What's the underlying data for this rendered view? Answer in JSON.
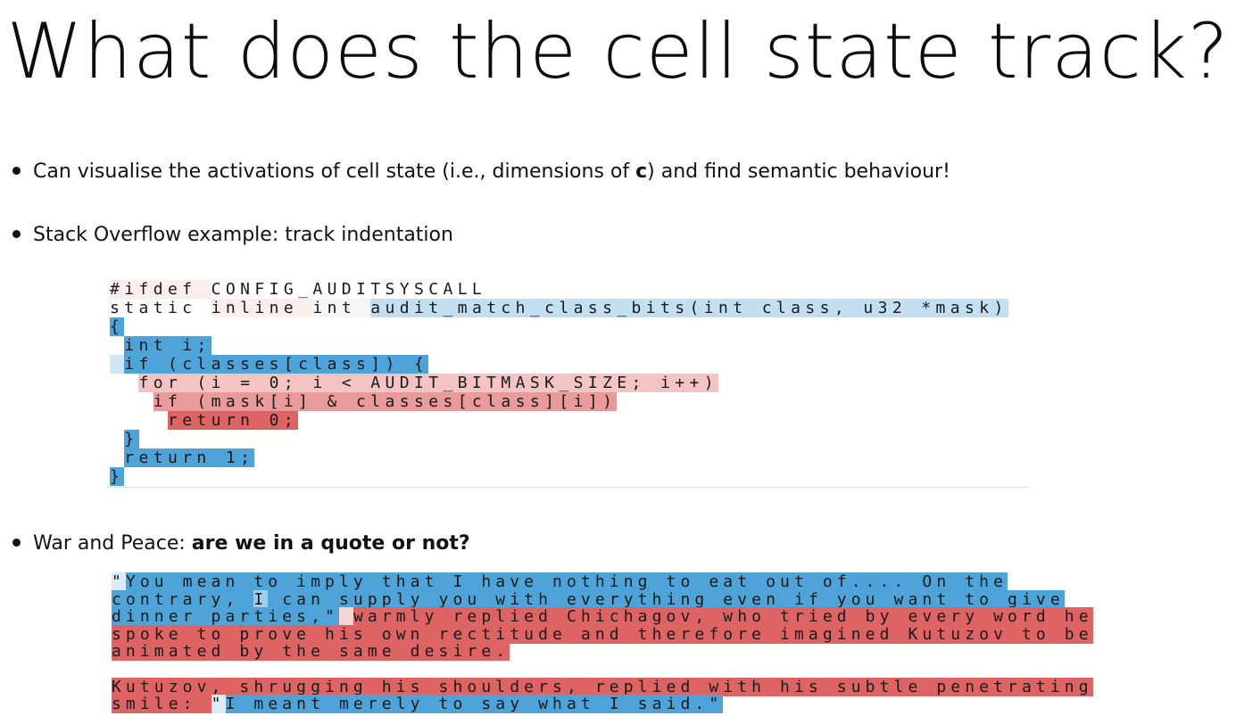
{
  "slide": {
    "title": "What does the cell state track?",
    "bullet1": {
      "pre": "Can visualise the activations of cell state (i.e., dimensions of ",
      "bold": "c",
      "post": ") and find semantic behaviour!"
    },
    "bullet2": {
      "text": "Stack Overflow example: track indentation"
    },
    "bullet3": {
      "pre": "War and Peace: ",
      "bold": "are we in a quote or not?"
    }
  },
  "colors": {
    "strong_blue": "#4ea3d8",
    "light_blue": "#bddff0",
    "faint_blue": "#e4f1f8",
    "strong_red": "#de6464",
    "mid_red": "#eda3a3",
    "light_red": "#f7d4d4",
    "faint_red": "#fce9e9"
  },
  "code_lines": [
    [
      {
        "t": "#ifdef ",
        "c": "#fdeeee"
      },
      {
        "t": "CONFIG_AUDITSYSCALL",
        "c": "#ffffff"
      }
    ],
    [
      {
        "t": "static ",
        "c": "#ffffff"
      },
      {
        "t": "inline ",
        "c": "#fdeeee"
      },
      {
        "t": "int ",
        "c": "#f6f6f6"
      },
      {
        "t": "audit_match_class_bits(int class, u32 *mask)",
        "c": "#c2e0f1"
      }
    ],
    [
      {
        "t": "{",
        "c": "#4ea3d8"
      }
    ],
    [
      {
        "t": " ",
        "c": "#ffffff"
      },
      {
        "t": "int i;",
        "c": "#4ea3d8"
      }
    ],
    [
      {
        "t": " ",
        "c": "#cfe6f4"
      },
      {
        "t": "if (classes[class]) {",
        "c": "#4ea3d8"
      }
    ],
    [
      {
        "t": "  ",
        "c": "#ffffff"
      },
      {
        "t": "for (i = 0; i < AUDIT_BITMASK_SIZE; i++)",
        "c": "#f4c3c3"
      }
    ],
    [
      {
        "t": "   ",
        "c": "#ffffff"
      },
      {
        "t": "if (mask[i] & classes[class][i])",
        "c": "#e99a9a"
      }
    ],
    [
      {
        "t": "    ",
        "c": "#ffffff"
      },
      {
        "t": "return 0;",
        "c": "#de6464"
      }
    ],
    [
      {
        "t": " ",
        "c": "#ffffff"
      },
      {
        "t": "}",
        "c": "#4ea3d8"
      }
    ],
    [
      {
        "t": " ",
        "c": "#ffffff"
      },
      {
        "t": "return 1;",
        "c": "#4ea3d8"
      }
    ],
    [
      {
        "t": "}",
        "c": "#4ea3d8"
      }
    ]
  ],
  "prose_lines": [
    [
      {
        "t": "\"",
        "c": "#d9ecf7"
      },
      {
        "t": "You mean to imply that I have nothing to eat out of.... On the",
        "c": "#4ea3d8"
      }
    ],
    [
      {
        "t": "contrary, ",
        "c": "#4ea3d8"
      },
      {
        "t": "I",
        "c": "#9fcfea"
      },
      {
        "t": " can supply you with everything even if you want to give",
        "c": "#4ea3d8"
      }
    ],
    [
      {
        "t": "dinner parties,\"",
        "c": "#4ea3d8"
      },
      {
        "t": " ",
        "c": "#f7d4d4"
      },
      {
        "t": "warmly replied Chichagov, who tried by every word he",
        "c": "#de6464"
      }
    ],
    [
      {
        "t": "spoke to prove his own rectitude and therefore imagined Kutuzov to be",
        "c": "#de6464"
      }
    ],
    [
      {
        "t": "animated by the same desire.",
        "c": "#de6464"
      }
    ],
    [
      {
        "t": "",
        "c": "#ffffff"
      }
    ],
    [
      {
        "t": "Kutuzov, shrugging his shoulders, replied with his subtle penetrating",
        "c": "#de6464"
      }
    ],
    [
      {
        "t": "smile: ",
        "c": "#de6464"
      },
      {
        "t": "\"",
        "c": "#d9ecf7"
      },
      {
        "t": "I meant merely to say what I said.\"",
        "c": "#4ea3d8"
      }
    ]
  ]
}
